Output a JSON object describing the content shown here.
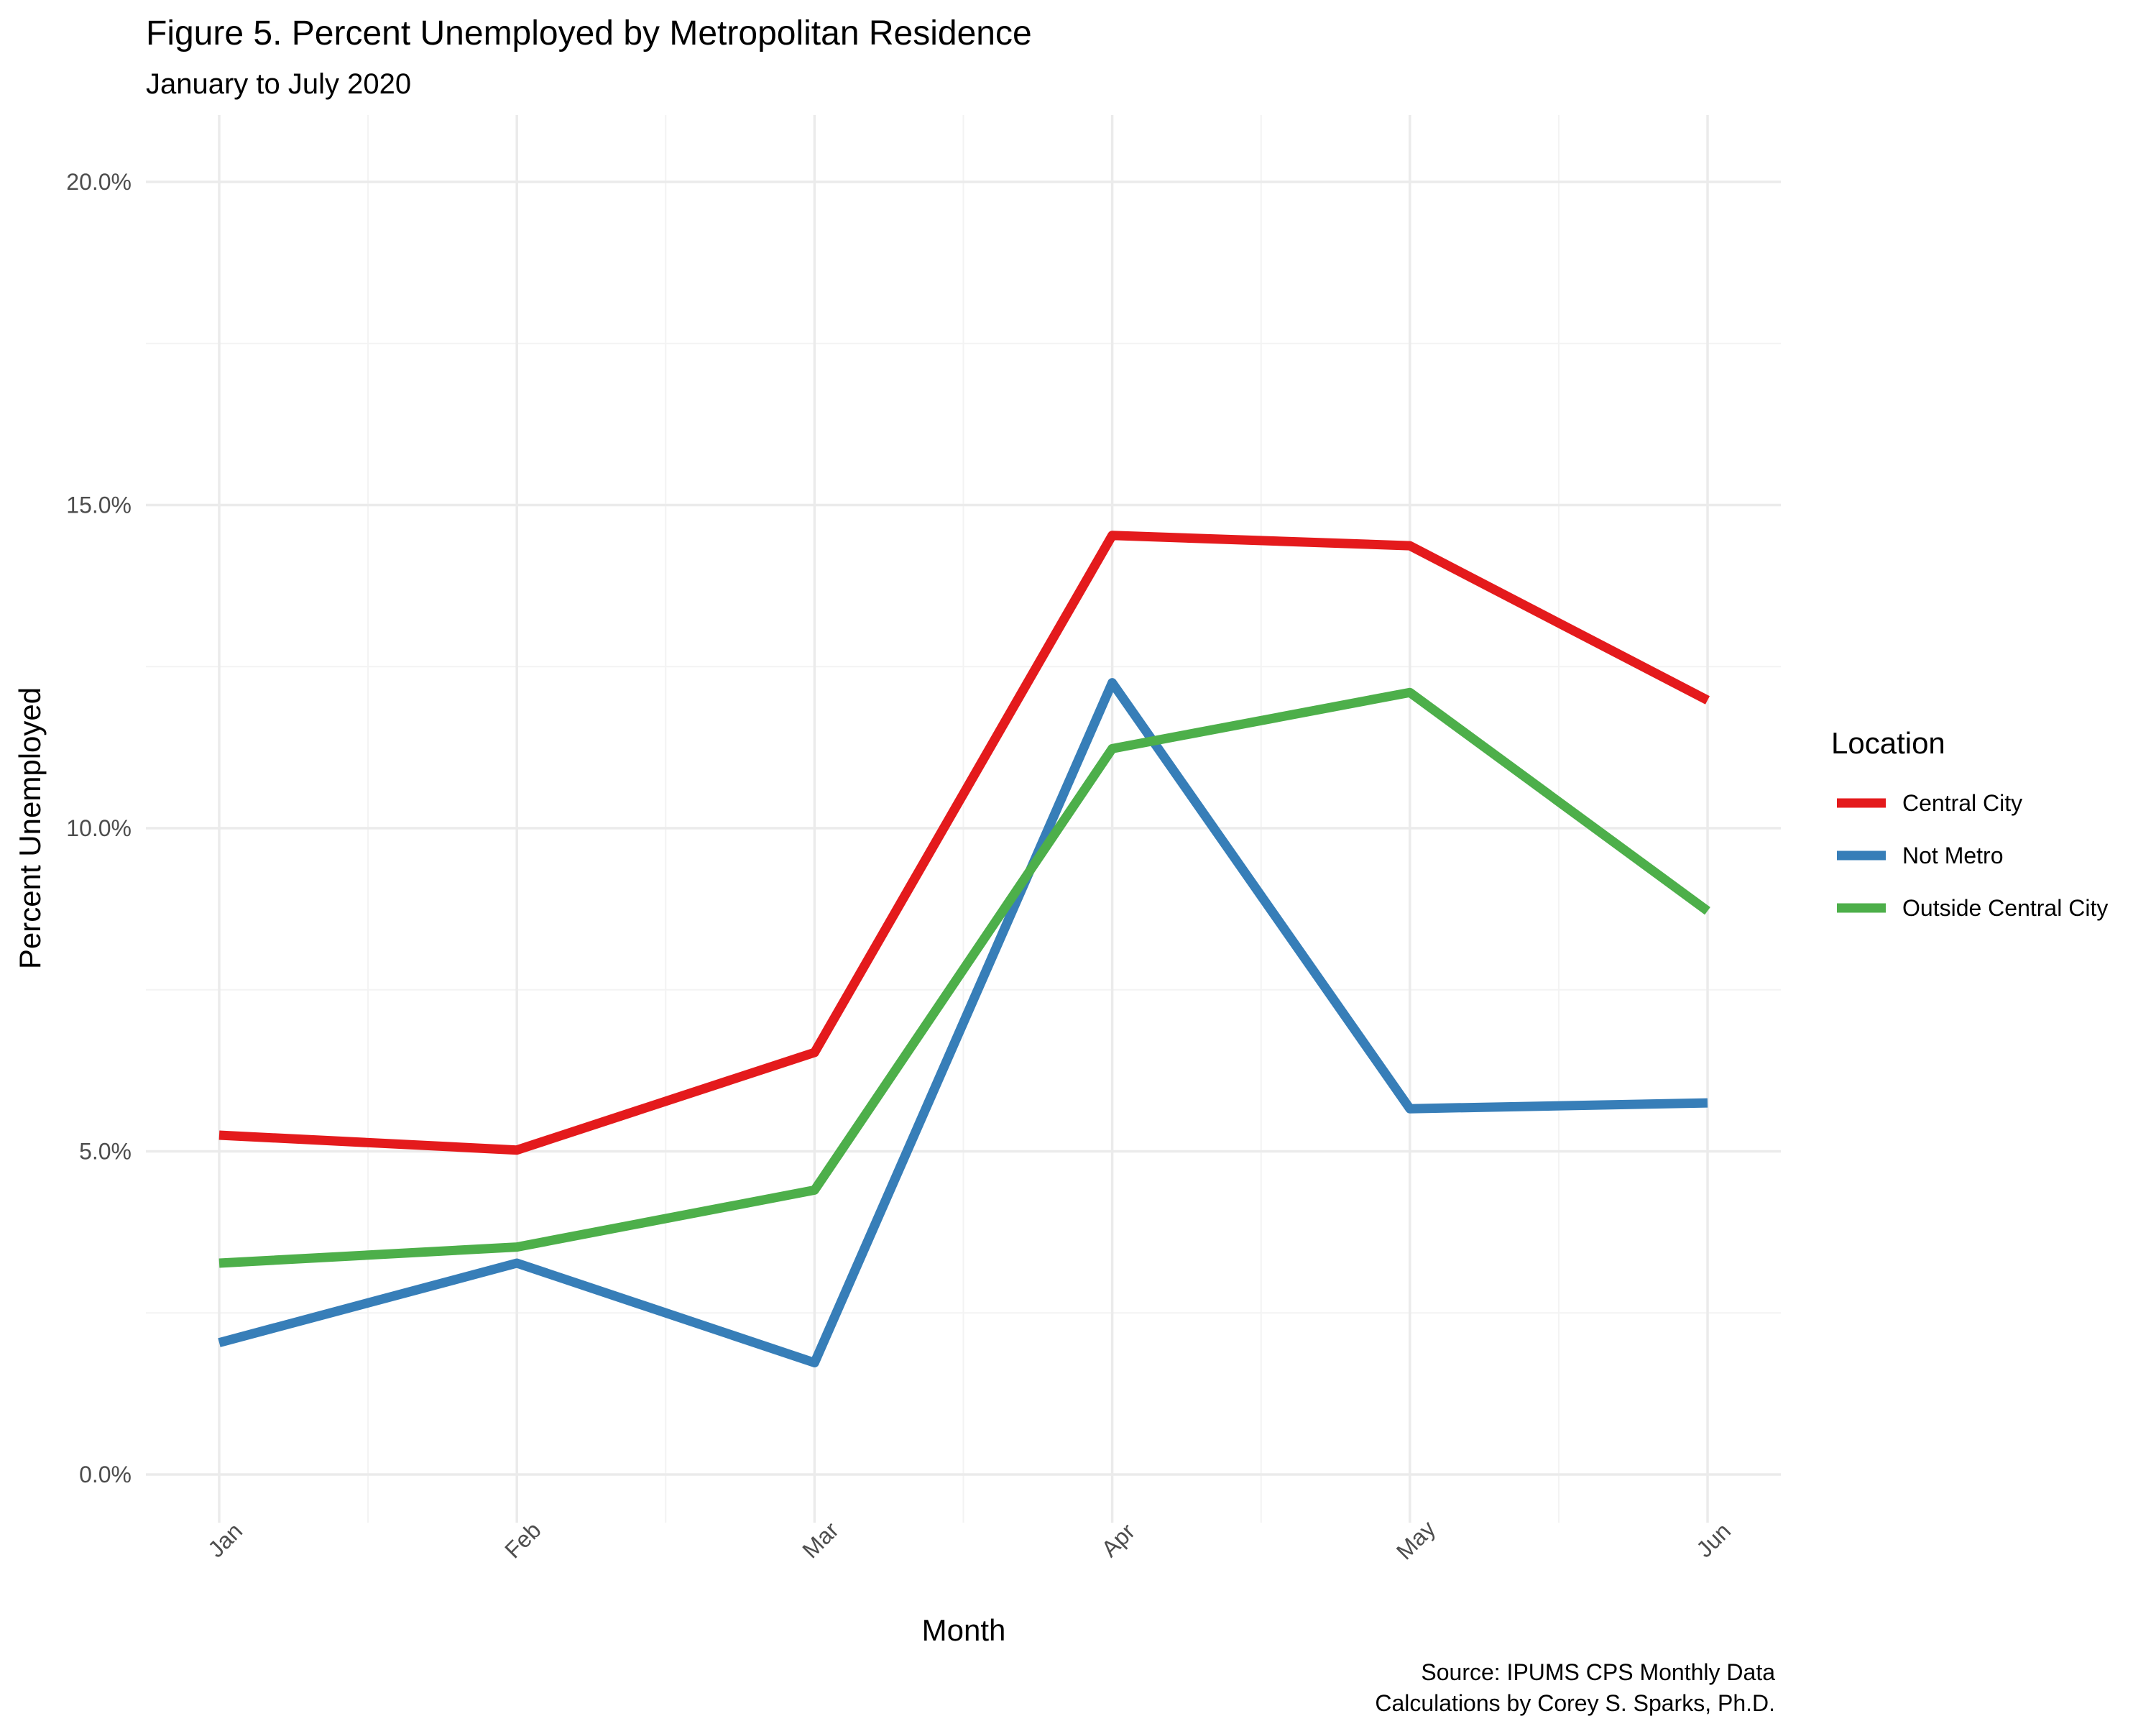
{
  "title": "Figure 5. Percent Unemployed by Metropolitan Residence",
  "subtitle": "January to July 2020",
  "caption_line1": "Source: IPUMS CPS Monthly Data",
  "caption_line2": "Calculations by Corey S. Sparks, Ph.D.",
  "chart_data": {
    "type": "line",
    "title": "Figure 5. Percent Unemployed by Metropolitan Residence",
    "subtitle": "January to July 2020",
    "xlabel": "Month",
    "ylabel": "Percent Unemployed",
    "categories": [
      "Jan",
      "Feb",
      "Mar",
      "Apr",
      "May",
      "Jun"
    ],
    "y_ticks": [
      0,
      5,
      10,
      15,
      20
    ],
    "y_tick_labels": [
      "0.0%",
      "5.0%",
      "10.0%",
      "15.0%",
      "20.0%"
    ],
    "ylim": [
      -0.7,
      21.0
    ],
    "grid": true,
    "legend_title": "Location",
    "legend_position": "right",
    "series": [
      {
        "name": "Central City",
        "color": "#e41a1c",
        "values": [
          5.25,
          5.02,
          6.53,
          14.53,
          14.37,
          11.98
        ]
      },
      {
        "name": "Not Metro",
        "color": "#377eb8",
        "values": [
          2.04,
          3.27,
          1.73,
          12.25,
          5.66,
          5.75
        ]
      },
      {
        "name": "Outside Central City",
        "color": "#4daf4a",
        "values": [
          3.27,
          3.52,
          4.4,
          11.23,
          12.1,
          8.72
        ]
      }
    ]
  }
}
